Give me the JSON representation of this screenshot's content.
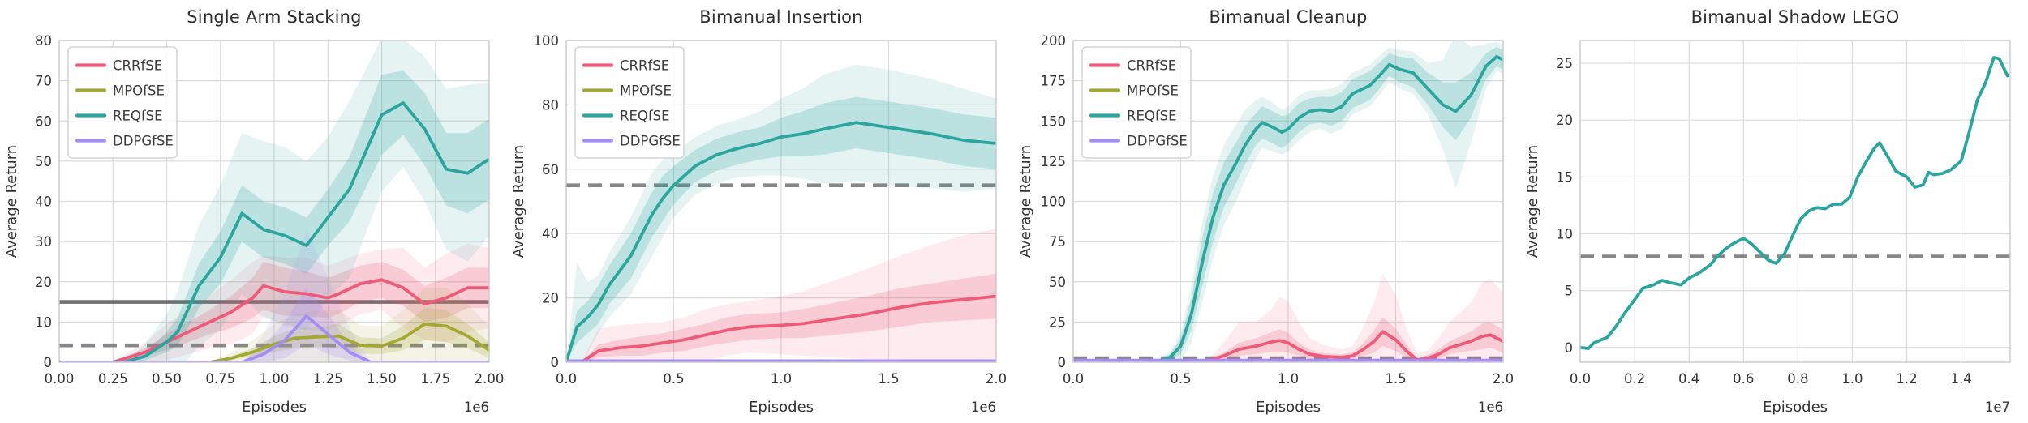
{
  "figure_title": "",
  "palette": {
    "crr": "#ef5a78",
    "mpo": "#a2a832",
    "req": "#2aa69e",
    "ddpg": "#a48df3",
    "baseline_solid": "#6f6f6f",
    "baseline_dashed": "#878787",
    "grid": "#dcdcdc",
    "spine": "#cbcbcb",
    "text": "#333333",
    "title_text": "#2e2e2e"
  },
  "legend_entries": [
    {
      "label": "CRRfSE",
      "key": "crr"
    },
    {
      "label": "MPOfSE",
      "key": "mpo"
    },
    {
      "label": "REQfSE",
      "key": "req"
    },
    {
      "label": "DDPGfSE",
      "key": "ddpg"
    }
  ],
  "chart_data": [
    {
      "type": "line",
      "title": "Single Arm Stacking",
      "xlabel": "Episodes",
      "ylabel": "Average Return",
      "offset_label": "1e6",
      "xlim": [
        0,
        2.0
      ],
      "ylim": [
        0,
        80
      ],
      "xticks": {
        "values": [
          0,
          0.25,
          0.5,
          0.75,
          1.0,
          1.25,
          1.5,
          1.75,
          2.0
        ],
        "labels": [
          "0.00",
          "0.25",
          "0.50",
          "0.75",
          "1.00",
          "1.25",
          "1.50",
          "1.75",
          "2.00"
        ]
      },
      "yticks": {
        "values": [
          0,
          10,
          20,
          30,
          40,
          50,
          60,
          70,
          80
        ],
        "labels": [
          "0",
          "10",
          "20",
          "30",
          "40",
          "50",
          "60",
          "70",
          "80"
        ]
      },
      "legend": true,
      "grid": true,
      "baselines": [
        {
          "value": 15,
          "style": "solid"
        },
        {
          "value": 4.2,
          "style": "dashed"
        }
      ],
      "series": [
        {
          "name": "CRRfSE",
          "key": "crr",
          "x": [
            0,
            0.25,
            0.4,
            0.5,
            0.6,
            0.7,
            0.8,
            0.9,
            0.95,
            1.05,
            1.15,
            1.25,
            1.3,
            1.4,
            1.5,
            1.6,
            1.7,
            1.8,
            1.9,
            2.0
          ],
          "y": [
            0,
            0,
            2.5,
            5,
            7.5,
            10,
            12.5,
            16,
            19,
            17.5,
            17,
            16,
            17,
            19.5,
            20.5,
            18.5,
            14.5,
            16,
            18.5,
            18.5
          ],
          "inner": [
            0,
            0,
            1,
            2,
            2.5,
            3,
            4,
            5,
            6,
            6,
            5.5,
            5,
            5,
            4.5,
            4.5,
            4.5,
            4.5,
            5,
            5,
            5
          ],
          "outer": [
            0,
            0,
            2.5,
            4.5,
            5.5,
            6.5,
            8,
            9,
            7.5,
            8.5,
            9,
            8,
            8,
            7.5,
            7.5,
            10,
            9,
            11,
            11,
            10
          ]
        },
        {
          "name": "MPOfSE",
          "key": "mpo",
          "x": [
            0,
            0.7,
            0.8,
            0.9,
            1.0,
            1.1,
            1.2,
            1.3,
            1.4,
            1.5,
            1.6,
            1.7,
            1.8,
            1.9,
            2.0
          ],
          "y": [
            0,
            0,
            1,
            2.5,
            4.5,
            6,
            6.3,
            6.5,
            4.2,
            4,
            6,
            9.5,
            9,
            6.5,
            3
          ],
          "inner": [
            0,
            0,
            0.5,
            1,
            2,
            2.5,
            2.5,
            3,
            2,
            2,
            3,
            4,
            4,
            3,
            2
          ],
          "outer": [
            0,
            0,
            1.5,
            3,
            5,
            6,
            6.5,
            6.5,
            5,
            5,
            7,
            9,
            9.5,
            8,
            6
          ]
        },
        {
          "name": "REQfSE",
          "key": "req",
          "x": [
            0,
            0.3,
            0.4,
            0.5,
            0.55,
            0.65,
            0.75,
            0.85,
            0.95,
            1.05,
            1.15,
            1.25,
            1.35,
            1.5,
            1.6,
            1.7,
            1.8,
            1.9,
            2.0
          ],
          "y": [
            0,
            0,
            1.5,
            5,
            7.5,
            19,
            26,
            37,
            33,
            31.5,
            29,
            36,
            43,
            61.5,
            64.5,
            58,
            48,
            47,
            50.5
          ],
          "inner": [
            0,
            0,
            1,
            2.5,
            3.5,
            5.5,
            6.5,
            7,
            7,
            7,
            7,
            7,
            8,
            10,
            8,
            9,
            9,
            10,
            10
          ],
          "outer": [
            0,
            0,
            3,
            7,
            10,
            15,
            18,
            20,
            22,
            22,
            21,
            20,
            22,
            19,
            16,
            18,
            20,
            22,
            19
          ]
        },
        {
          "name": "DDPGfSE",
          "key": "ddpg",
          "x": [
            0,
            0.85,
            0.95,
            1.05,
            1.15,
            1.25,
            1.35,
            1.45,
            2.0
          ],
          "y": [
            0,
            0,
            2,
            5.5,
            11.5,
            7,
            2.5,
            0,
            0
          ],
          "inner": [
            0,
            0,
            2,
            4.5,
            7,
            5,
            2,
            0,
            0
          ],
          "outer": [
            0,
            0,
            5,
            12,
            21.5,
            14,
            6,
            0,
            0
          ]
        }
      ]
    },
    {
      "type": "line",
      "title": "Bimanual Insertion",
      "xlabel": "Episodes",
      "ylabel": "Average Return",
      "offset_label": "1e6",
      "xlim": [
        0,
        2.0
      ],
      "ylim": [
        0,
        100
      ],
      "xticks": {
        "values": [
          0,
          0.5,
          1.0,
          1.5,
          2.0
        ],
        "labels": [
          "0.0",
          "0.5",
          "1.0",
          "1.5",
          "2.0"
        ]
      },
      "yticks": {
        "values": [
          0,
          20,
          40,
          60,
          80,
          100
        ],
        "labels": [
          "0",
          "20",
          "40",
          "60",
          "80",
          "100"
        ]
      },
      "legend": true,
      "grid": true,
      "baselines": [
        {
          "value": 55,
          "style": "dashed"
        }
      ],
      "series": [
        {
          "name": "CRRfSE",
          "key": "crr",
          "x": [
            0,
            0.07,
            0.15,
            0.25,
            0.35,
            0.45,
            0.55,
            0.65,
            0.75,
            0.85,
            1.0,
            1.1,
            1.25,
            1.4,
            1.55,
            1.7,
            1.85,
            2.0
          ],
          "y": [
            0,
            0,
            3.5,
            4.5,
            5,
            6,
            7,
            8.5,
            10,
            11,
            11.5,
            12,
            13.5,
            15,
            17,
            18.5,
            19.5,
            20.5
          ],
          "inner": [
            0,
            0,
            2,
            2.5,
            3,
            3,
            3.5,
            3.5,
            4,
            4,
            4,
            4.5,
            5,
            5.5,
            6,
            6,
            6.5,
            7
          ],
          "outer": [
            0,
            0,
            7,
            7,
            7,
            6.5,
            7,
            8,
            8,
            8,
            9,
            10,
            12,
            14,
            16,
            18,
            20,
            21
          ]
        },
        {
          "name": "MPOfSE",
          "key": "mpo",
          "x": [
            0,
            2.0
          ],
          "y": [
            0.4,
            0.4
          ]
        },
        {
          "name": "REQfSE",
          "key": "req",
          "x": [
            0,
            0.05,
            0.1,
            0.15,
            0.2,
            0.3,
            0.4,
            0.45,
            0.5,
            0.6,
            0.7,
            0.8,
            0.9,
            1.0,
            1.1,
            1.2,
            1.35,
            1.5,
            1.7,
            1.85,
            2.0
          ],
          "y": [
            0,
            11,
            14,
            18,
            24,
            33,
            46,
            51,
            55,
            61,
            64.5,
            66.5,
            68,
            70,
            71,
            72.5,
            74.5,
            73,
            71,
            69,
            68
          ],
          "inner": [
            0,
            5,
            5,
            6,
            6,
            7,
            7,
            7,
            6,
            5,
            5,
            5,
            5,
            6,
            7,
            8,
            8,
            8,
            8,
            8,
            8
          ],
          "outer": [
            0,
            20,
            11,
            9,
            10,
            12,
            13,
            12,
            10,
            9,
            9,
            9,
            10,
            12,
            14,
            17,
            18,
            18,
            17,
            16,
            14
          ]
        },
        {
          "name": "DDPGfSE",
          "key": "ddpg",
          "x": [
            0,
            2.0
          ],
          "y": [
            0.4,
            0.4
          ]
        }
      ]
    },
    {
      "type": "line",
      "title": "Bimanual Cleanup",
      "xlabel": "Episodes",
      "ylabel": "Average Return",
      "offset_label": "1e6",
      "xlim": [
        0,
        2.0
      ],
      "ylim": [
        0,
        200
      ],
      "xticks": {
        "values": [
          0,
          0.5,
          1.0,
          1.5,
          2.0
        ],
        "labels": [
          "0.0",
          "0.5",
          "1.0",
          "1.5",
          "2.0"
        ]
      },
      "yticks": {
        "values": [
          0,
          25,
          50,
          75,
          100,
          125,
          150,
          175,
          200
        ],
        "labels": [
          "0",
          "25",
          "50",
          "75",
          "100",
          "125",
          "150",
          "175",
          "200"
        ]
      },
      "legend": true,
      "grid": true,
      "baselines": [
        {
          "value": 2.5,
          "style": "dashed"
        }
      ],
      "series": [
        {
          "name": "CRRfSE",
          "key": "crr",
          "x": [
            0,
            0.62,
            0.7,
            0.77,
            0.85,
            0.92,
            0.96,
            1.0,
            1.05,
            1.1,
            1.17,
            1.25,
            1.3,
            1.35,
            1.4,
            1.44,
            1.5,
            1.55,
            1.6,
            1.65,
            1.7,
            1.75,
            1.8,
            1.85,
            1.9,
            1.94,
            2.0
          ],
          "y": [
            0.5,
            0.5,
            4,
            8,
            10,
            12.5,
            13.5,
            12,
            8,
            5,
            3.5,
            3,
            4,
            8,
            13,
            19,
            14,
            7,
            1.5,
            2.5,
            5,
            9,
            11,
            13,
            16,
            17,
            13
          ],
          "inner": [
            0.5,
            0.5,
            2,
            4,
            5,
            6,
            7,
            6,
            4,
            3,
            2,
            2,
            2,
            4,
            7,
            9,
            7,
            4,
            1,
            2,
            3,
            4,
            5,
            6,
            8,
            8,
            7
          ],
          "outer": [
            0.5,
            0.5,
            8,
            17,
            15,
            20,
            27,
            26,
            17,
            10,
            7,
            5,
            6,
            14,
            24,
            36,
            28,
            14,
            4,
            5,
            10,
            16,
            20,
            24,
            33,
            35,
            30
          ]
        },
        {
          "name": "MPOfSE",
          "key": "mpo",
          "x": [
            0,
            2.0
          ],
          "y": [
            1,
            1
          ]
        },
        {
          "name": "REQfSE",
          "key": "req",
          "x": [
            0,
            0.4,
            0.45,
            0.5,
            0.55,
            0.6,
            0.65,
            0.7,
            0.75,
            0.8,
            0.85,
            0.88,
            0.93,
            0.97,
            1.0,
            1.05,
            1.1,
            1.15,
            1.2,
            1.25,
            1.3,
            1.38,
            1.43,
            1.47,
            1.52,
            1.58,
            1.65,
            1.72,
            1.78,
            1.85,
            1.92,
            1.97,
            2.0
          ],
          "y": [
            1,
            1,
            3,
            10,
            30,
            62,
            90,
            110,
            122,
            135,
            145,
            149,
            146,
            143,
            145,
            152,
            156,
            157,
            156,
            159,
            167,
            172,
            179,
            185,
            182,
            180,
            170,
            160,
            156,
            166,
            184,
            190,
            188
          ],
          "inner": [
            1,
            1,
            2,
            5,
            10,
            15,
            15,
            14,
            13,
            12,
            10,
            10,
            10,
            10,
            9,
            9,
            8,
            8,
            9,
            9,
            9,
            9,
            8,
            7,
            8,
            9,
            10,
            14,
            18,
            14,
            8,
            6,
            6
          ],
          "outer": [
            1,
            1,
            4,
            9,
            18,
            25,
            26,
            25,
            24,
            22,
            18,
            16,
            15,
            14,
            14,
            14,
            13,
            12,
            14,
            14,
            13,
            13,
            12,
            11,
            12,
            13,
            16,
            28,
            48,
            30,
            14,
            9,
            9
          ]
        },
        {
          "name": "DDPGfSE",
          "key": "ddpg",
          "x": [
            0,
            2.0
          ],
          "y": [
            1.2,
            1.2
          ]
        }
      ]
    },
    {
      "type": "line",
      "title": "Bimanual Shadow LEGO",
      "xlabel": "Episodes",
      "ylabel": "Average Return",
      "offset_label": "1e7",
      "xlim": [
        0,
        1.58
      ],
      "ylim": [
        -1.3,
        27
      ],
      "xticks": {
        "values": [
          0,
          0.2,
          0.4,
          0.6,
          0.8,
          1.0,
          1.2,
          1.4
        ],
        "labels": [
          "0.0",
          "0.2",
          "0.4",
          "0.6",
          "0.8",
          "1.0",
          "1.2",
          "1.4"
        ]
      },
      "yticks": {
        "values": [
          0,
          5,
          10,
          15,
          20,
          25
        ],
        "labels": [
          "0",
          "5",
          "10",
          "15",
          "20",
          "25"
        ]
      },
      "legend": false,
      "grid": true,
      "baselines": [
        {
          "value": 8,
          "style": "dashed"
        }
      ],
      "series": [
        {
          "name": "REQfSE",
          "key": "req",
          "x": [
            0,
            0.03,
            0.05,
            0.08,
            0.1,
            0.13,
            0.16,
            0.2,
            0.23,
            0.27,
            0.3,
            0.33,
            0.37,
            0.4,
            0.44,
            0.48,
            0.5,
            0.53,
            0.56,
            0.6,
            0.63,
            0.66,
            0.69,
            0.72,
            0.75,
            0.78,
            0.81,
            0.84,
            0.87,
            0.9,
            0.93,
            0.96,
            0.99,
            1.02,
            1.05,
            1.08,
            1.1,
            1.13,
            1.16,
            1.2,
            1.23,
            1.26,
            1.28,
            1.3,
            1.33,
            1.36,
            1.4,
            1.43,
            1.46,
            1.49,
            1.52,
            1.54,
            1.57
          ],
          "y": [
            0,
            -0.1,
            0.4,
            0.7,
            0.9,
            1.8,
            2.9,
            4.2,
            5.2,
            5.5,
            5.9,
            5.7,
            5.5,
            6.1,
            6.6,
            7.3,
            7.9,
            8.6,
            9.1,
            9.6,
            9.1,
            8.4,
            7.7,
            7.4,
            8.2,
            9.8,
            11.3,
            12.0,
            12.3,
            12.2,
            12.6,
            12.6,
            13.2,
            15.0,
            16.3,
            17.5,
            18.0,
            16.8,
            15.5,
            15.0,
            14.1,
            14.3,
            15.4,
            15.2,
            15.3,
            15.6,
            16.4,
            19.0,
            21.8,
            23.3,
            25.5,
            25.4,
            23.9
          ]
        }
      ]
    }
  ]
}
